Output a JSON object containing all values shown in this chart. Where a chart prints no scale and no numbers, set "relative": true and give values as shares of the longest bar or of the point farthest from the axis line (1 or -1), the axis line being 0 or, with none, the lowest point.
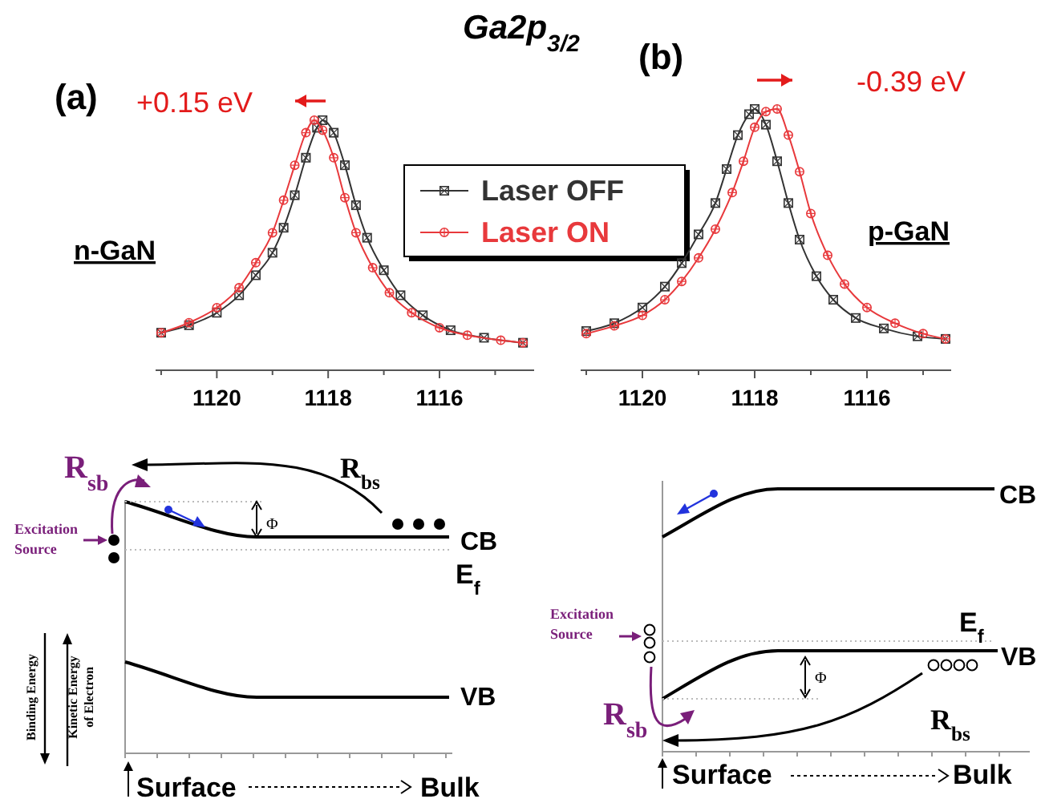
{
  "chart_data": [
    {
      "type": "line",
      "title": "Ga2p$_{3/2}$",
      "relative": true,
      "legend": "right",
      "xlim": [
        1121.1,
        1114.3
      ],
      "xticks": [
        {
          "value": 1121,
          "label": null
        },
        1120,
        {
          "value": 1119,
          "label": null
        },
        1118,
        {
          "value": 1117,
          "label": null
        },
        1116,
        {
          "value": 1115,
          "label": null
        }
      ],
      "annotations": [
        "(a)",
        "+0.15 eV",
        "n-GaN"
      ],
      "series": [
        {
          "name": "Laser OFF",
          "color": "#333333",
          "marker": "square",
          "x": [
            1121.0,
            1120.5,
            1120.0,
            1119.6,
            1119.3,
            1119.0,
            1118.8,
            1118.6,
            1118.4,
            1118.2,
            1118.1,
            1117.9,
            1117.7,
            1117.5,
            1117.3,
            1117.0,
            1116.7,
            1116.3,
            1115.8,
            1115.2,
            1114.5
          ],
          "values": [
            0.15,
            0.18,
            0.23,
            0.3,
            0.38,
            0.47,
            0.57,
            0.7,
            0.85,
            0.97,
            1.0,
            0.95,
            0.82,
            0.66,
            0.53,
            0.4,
            0.3,
            0.22,
            0.16,
            0.13,
            0.11
          ]
        },
        {
          "name": "Laser ON",
          "color": "#e8393c",
          "marker": "circle",
          "x": [
            1121.0,
            1120.5,
            1120.0,
            1119.6,
            1119.3,
            1119.0,
            1118.8,
            1118.6,
            1118.4,
            1118.25,
            1118.1,
            1117.9,
            1117.7,
            1117.5,
            1117.2,
            1116.9,
            1116.5,
            1116.0,
            1115.5,
            1114.9,
            1114.5
          ],
          "values": [
            0.15,
            0.19,
            0.25,
            0.33,
            0.43,
            0.55,
            0.68,
            0.82,
            0.95,
            1.0,
            0.96,
            0.85,
            0.69,
            0.55,
            0.41,
            0.31,
            0.23,
            0.17,
            0.14,
            0.12,
            0.11
          ]
        }
      ]
    },
    {
      "type": "line",
      "relative": true,
      "xlim": [
        1121.1,
        1114.5
      ],
      "xticks": [
        {
          "value": 1121,
          "label": null
        },
        1120,
        {
          "value": 1119,
          "label": null
        },
        1118,
        {
          "value": 1117,
          "label": null
        },
        1116,
        {
          "value": 1115,
          "label": null
        }
      ],
      "annotations": [
        "(b)",
        "-0.39 eV",
        "p-GaN"
      ],
      "series": [
        {
          "color": "#333333",
          "marker": "square",
          "x": [
            1121.0,
            1120.5,
            1120.0,
            1119.6,
            1119.3,
            1119.0,
            1118.7,
            1118.5,
            1118.3,
            1118.1,
            1118.0,
            1117.8,
            1117.6,
            1117.4,
            1117.2,
            1116.9,
            1116.6,
            1116.2,
            1115.7,
            1115.1,
            1114.6
          ],
          "values": [
            0.15,
            0.18,
            0.24,
            0.32,
            0.41,
            0.52,
            0.64,
            0.77,
            0.9,
            0.98,
            1.0,
            0.94,
            0.8,
            0.64,
            0.5,
            0.36,
            0.27,
            0.2,
            0.16,
            0.13,
            0.12
          ]
        },
        {
          "color": "#e8393c",
          "marker": "circle",
          "x": [
            1121.0,
            1120.5,
            1120.0,
            1119.6,
            1119.3,
            1119.0,
            1118.7,
            1118.4,
            1118.2,
            1118.0,
            1117.8,
            1117.6,
            1117.4,
            1117.2,
            1117.0,
            1116.7,
            1116.4,
            1116.0,
            1115.5,
            1115.0,
            1114.6
          ],
          "values": [
            0.14,
            0.17,
            0.21,
            0.27,
            0.34,
            0.43,
            0.54,
            0.68,
            0.8,
            0.93,
            0.99,
            1.0,
            0.9,
            0.76,
            0.6,
            0.44,
            0.33,
            0.24,
            0.18,
            0.14,
            0.12
          ]
        }
      ]
    },
    {
      "type": "other",
      "annotations": [
        "R$_{sb}$",
        "R$_{bs}$",
        "Excitation Source",
        "Φ",
        "CB",
        "E$_{f}$",
        "VB",
        "Binding Energy",
        "Kinetic Energy",
        "of Electron",
        "Surface",
        "Bulk"
      ]
    },
    {
      "type": "other",
      "annotations": [
        "Excitation Source",
        "Φ",
        "CB",
        "E$_{f}$",
        "VB",
        "R$_{sb}$",
        "R$_{bs}$",
        "Surface",
        "Bulk"
      ]
    }
  ]
}
